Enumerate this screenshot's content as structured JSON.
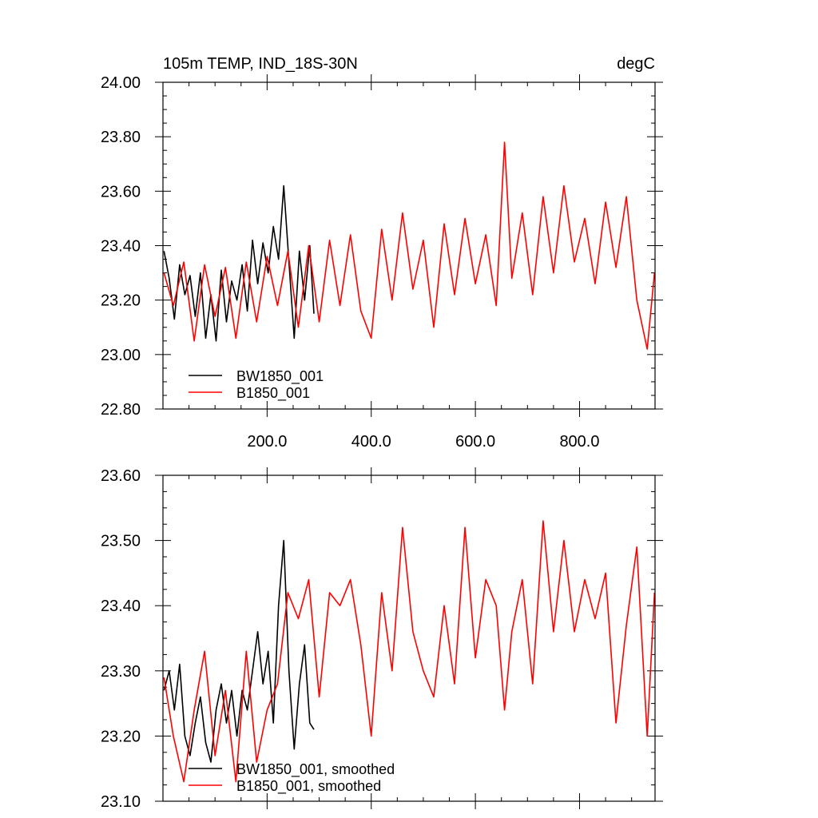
{
  "chart_data": [
    {
      "type": "line",
      "title_left": "105m TEMP, IND_18S-30N",
      "title_right": "degC",
      "xlim": [
        0,
        945
      ],
      "ylim": [
        22.8,
        24.0
      ],
      "xticks": [
        200,
        400,
        600,
        800
      ],
      "xtick_labels": [
        "200.0",
        "400.0",
        "600.0",
        "800.0"
      ],
      "yticks": [
        22.8,
        23.0,
        23.2,
        23.4,
        23.6,
        23.8,
        24.0
      ],
      "ytick_labels": [
        "22.80",
        "23.00",
        "23.20",
        "23.40",
        "23.60",
        "23.80",
        "24.00"
      ],
      "legend_position": "bottom-left",
      "series": [
        {
          "name": "BW1850_001",
          "color": "#000000",
          "x": [
            2,
            12,
            22,
            32,
            42,
            52,
            62,
            72,
            82,
            92,
            102,
            112,
            122,
            132,
            142,
            152,
            162,
            172,
            182,
            192,
            202,
            212,
            222,
            232,
            242,
            252,
            262,
            272,
            282,
            290
          ],
          "y": [
            23.38,
            23.28,
            23.13,
            23.33,
            23.22,
            23.29,
            23.14,
            23.3,
            23.06,
            23.22,
            23.05,
            23.31,
            23.12,
            23.27,
            23.2,
            23.33,
            23.16,
            23.42,
            23.26,
            23.41,
            23.3,
            23.47,
            23.35,
            23.62,
            23.34,
            23.06,
            23.38,
            23.2,
            23.4,
            23.15
          ]
        },
        {
          "name": "B1850_001",
          "color": "#ff0000",
          "x": [
            2,
            20,
            40,
            60,
            80,
            100,
            120,
            140,
            160,
            180,
            200,
            220,
            240,
            260,
            280,
            300,
            320,
            340,
            360,
            380,
            400,
            420,
            440,
            460,
            480,
            500,
            520,
            540,
            560,
            580,
            600,
            620,
            640,
            656,
            670,
            690,
            710,
            730,
            750,
            770,
            790,
            810,
            830,
            850,
            870,
            890,
            910,
            930,
            944
          ],
          "y": [
            23.3,
            23.18,
            23.34,
            23.05,
            23.33,
            23.14,
            23.32,
            23.06,
            23.34,
            23.12,
            23.36,
            23.18,
            23.38,
            23.1,
            23.4,
            23.12,
            23.42,
            23.18,
            23.44,
            23.16,
            23.06,
            23.46,
            23.2,
            23.52,
            23.24,
            23.42,
            23.1,
            23.48,
            23.22,
            23.5,
            23.26,
            23.44,
            23.18,
            23.78,
            23.28,
            23.52,
            23.22,
            23.58,
            23.3,
            23.62,
            23.34,
            23.5,
            23.26,
            23.56,
            23.32,
            23.58,
            23.2,
            23.02,
            23.3
          ]
        }
      ]
    },
    {
      "type": "line",
      "xlim": [
        0,
        945
      ],
      "ylim": [
        23.1,
        23.6
      ],
      "yticks": [
        23.1,
        23.2,
        23.3,
        23.4,
        23.5,
        23.6
      ],
      "ytick_labels": [
        "23.10",
        "23.20",
        "23.30",
        "23.40",
        "23.50",
        "23.60"
      ],
      "legend_position": "bottom-left",
      "series": [
        {
          "name": "BW1850_001, smoothed",
          "color": "#000000",
          "x": [
            2,
            12,
            22,
            32,
            42,
            52,
            62,
            72,
            82,
            92,
            102,
            112,
            122,
            132,
            142,
            152,
            162,
            172,
            182,
            192,
            202,
            212,
            222,
            232,
            242,
            252,
            262,
            272,
            282,
            290
          ],
          "y": [
            23.27,
            23.3,
            23.24,
            23.31,
            23.2,
            23.17,
            23.22,
            23.26,
            23.19,
            23.16,
            23.24,
            23.28,
            23.22,
            23.27,
            23.2,
            23.27,
            23.24,
            23.3,
            23.36,
            23.28,
            23.33,
            23.22,
            23.4,
            23.5,
            23.3,
            23.18,
            23.28,
            23.34,
            23.22,
            23.21
          ]
        },
        {
          "name": "B1850_001, smoothed",
          "color": "#ff0000",
          "x": [
            2,
            20,
            40,
            60,
            80,
            100,
            120,
            140,
            160,
            180,
            200,
            220,
            240,
            260,
            280,
            300,
            320,
            340,
            360,
            380,
            400,
            420,
            440,
            460,
            480,
            500,
            520,
            540,
            560,
            580,
            600,
            620,
            640,
            656,
            670,
            690,
            710,
            730,
            750,
            770,
            790,
            810,
            830,
            850,
            870,
            890,
            910,
            930,
            944
          ],
          "y": [
            23.29,
            23.2,
            23.13,
            23.24,
            23.33,
            23.17,
            23.27,
            23.13,
            23.33,
            23.16,
            23.24,
            23.28,
            23.42,
            23.38,
            23.44,
            23.26,
            23.42,
            23.4,
            23.44,
            23.34,
            23.2,
            23.42,
            23.3,
            23.52,
            23.36,
            23.3,
            23.26,
            23.4,
            23.28,
            23.52,
            23.32,
            23.44,
            23.4,
            23.24,
            23.36,
            23.44,
            23.28,
            23.53,
            23.36,
            23.5,
            23.36,
            23.44,
            23.38,
            23.45,
            23.22,
            23.37,
            23.49,
            23.2,
            23.42
          ]
        }
      ]
    }
  ]
}
